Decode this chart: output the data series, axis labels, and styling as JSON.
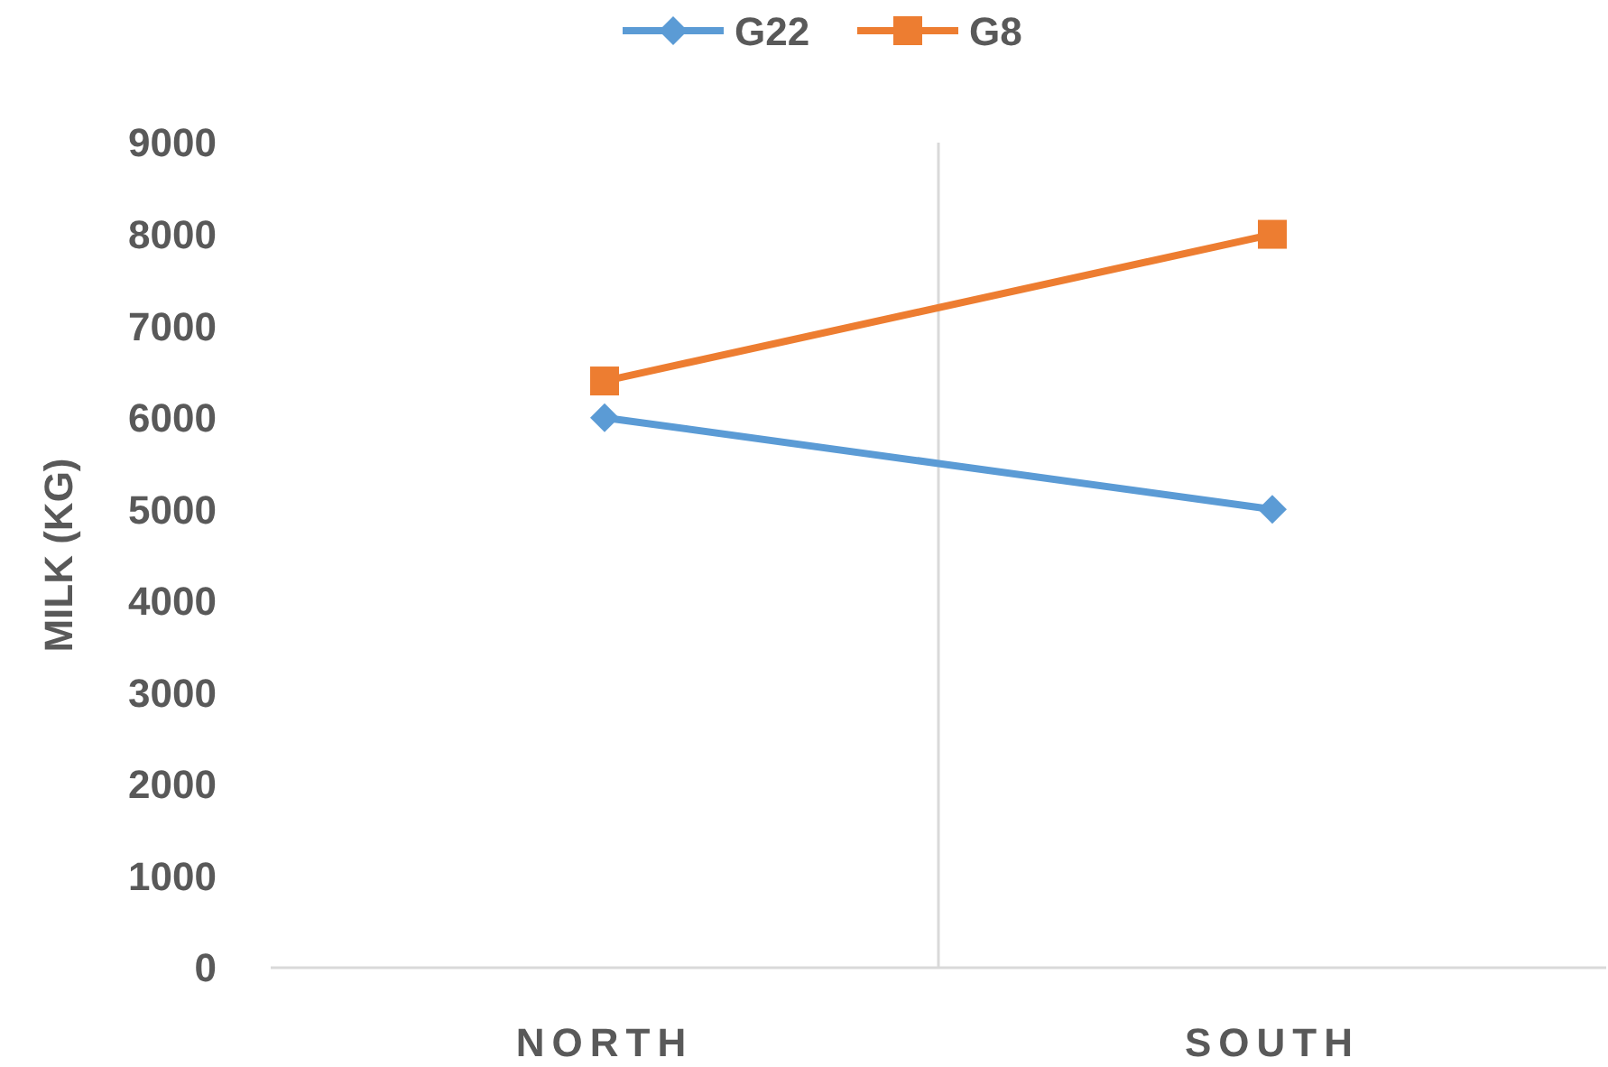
{
  "chart_data": {
    "type": "line",
    "ylabel": "MILK (KG)",
    "categories": [
      "NORTH",
      "SOUTH"
    ],
    "series": [
      {
        "name": "G22",
        "color": "#5b9bd5",
        "marker": "diamond",
        "values": [
          6000,
          5000
        ]
      },
      {
        "name": "G8",
        "color": "#ed7d31",
        "marker": "square",
        "values": [
          6400,
          8000
        ]
      }
    ],
    "ylim": [
      0,
      9000
    ],
    "yticks": [
      0,
      1000,
      2000,
      3000,
      4000,
      5000,
      6000,
      7000,
      8000,
      9000
    ],
    "grid": "x",
    "legend": "top"
  }
}
